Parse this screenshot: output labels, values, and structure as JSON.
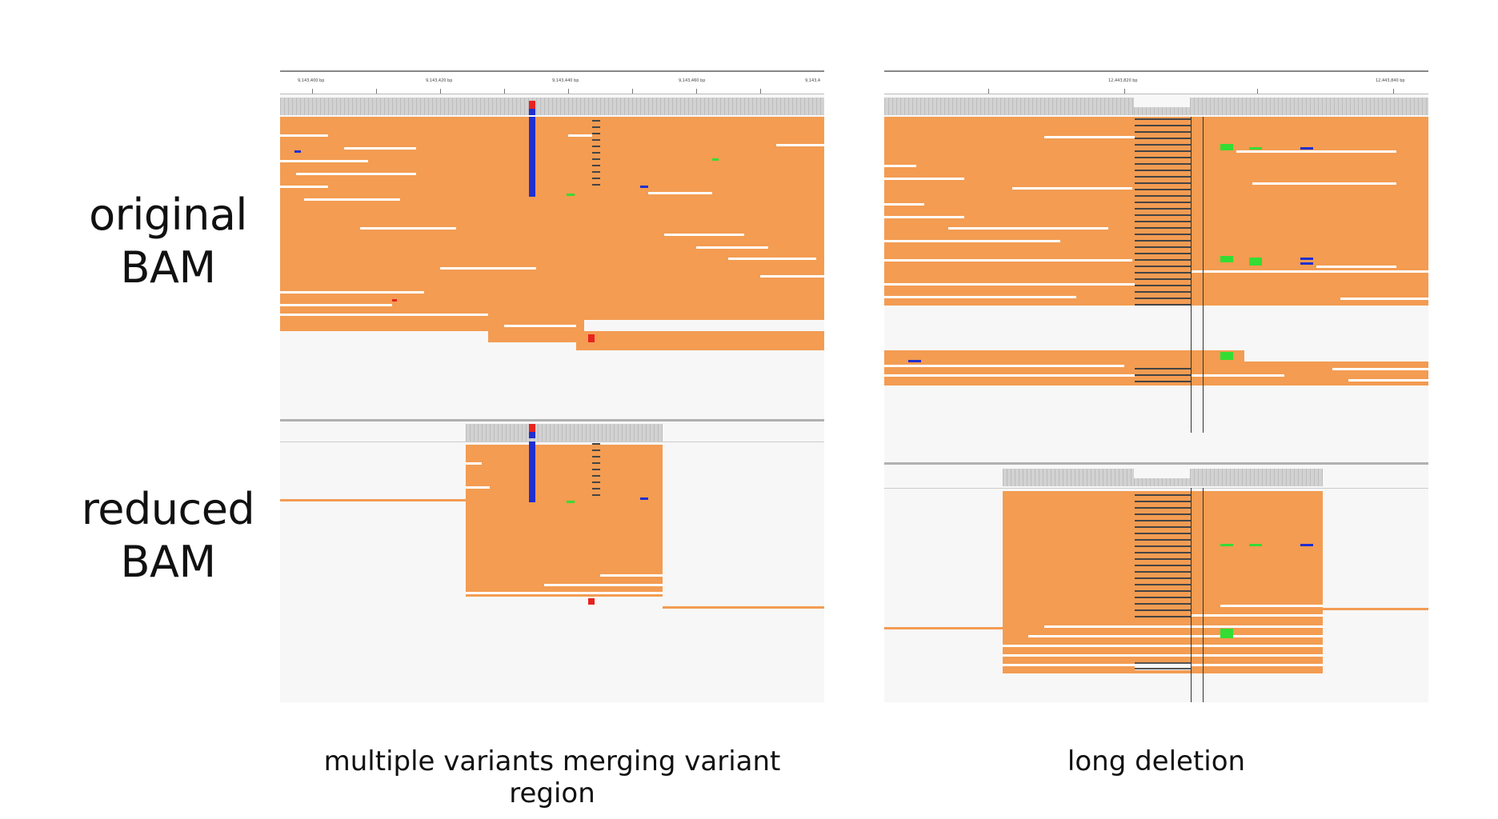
{
  "labels": {
    "original_line1": "original",
    "original_line2": "BAM",
    "reduced_line1": "reduced",
    "reduced_line2": "BAM"
  },
  "captions": {
    "left": "multiple variants merging variant region",
    "right": "long deletion"
  },
  "left_panel": {
    "ruler_ticks": [
      "9,143,400 bp",
      "9,143,420 bp",
      "9,143,440 bp",
      "9,143,460 bp",
      "9,143,4"
    ]
  },
  "right_panel": {
    "ruler_ticks": [
      "12,443,820 bp",
      "12,443,840 bp"
    ]
  },
  "colors": {
    "read": "#f39c52",
    "background": "#f7f7f7",
    "coverage": "#c8c8c8",
    "snp_blue": "#1f2fd0",
    "snp_red": "#e8231f",
    "snp_green": "#33dd33",
    "deletion": "#444444"
  }
}
